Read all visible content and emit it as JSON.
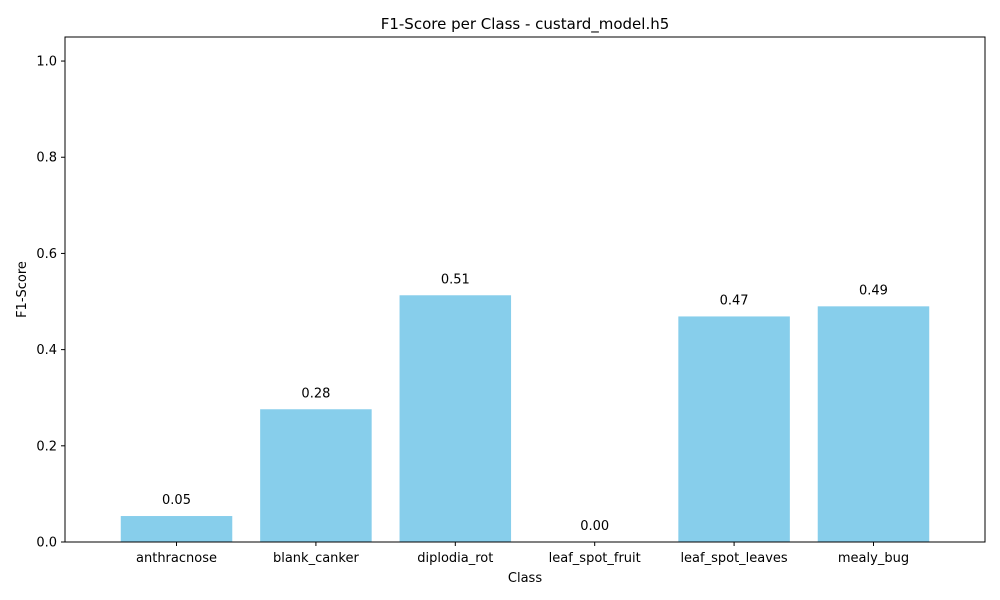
{
  "chart_data": {
    "type": "bar",
    "title": "F1-Score per Class - custard_model.h5",
    "xlabel": "Class",
    "ylabel": "F1-Score",
    "categories": [
      "anthracnose",
      "blank_canker",
      "diplodia_rot",
      "leaf_spot_fruit",
      "leaf_spot_leaves",
      "mealy_bug"
    ],
    "values": [
      0.054,
      0.276,
      0.513,
      0.0,
      0.469,
      0.49
    ],
    "data_labels": [
      "0.05",
      "0.28",
      "0.51",
      "0.00",
      "0.47",
      "0.49"
    ],
    "ylim": [
      0,
      1.05
    ],
    "yticks": [
      0.0,
      0.2,
      0.4,
      0.6,
      0.8,
      1.0
    ],
    "ytick_labels": [
      "0.0",
      "0.2",
      "0.4",
      "0.6",
      "0.8",
      "1.0"
    ],
    "grid": false,
    "bar_color": "#87CEEB"
  }
}
